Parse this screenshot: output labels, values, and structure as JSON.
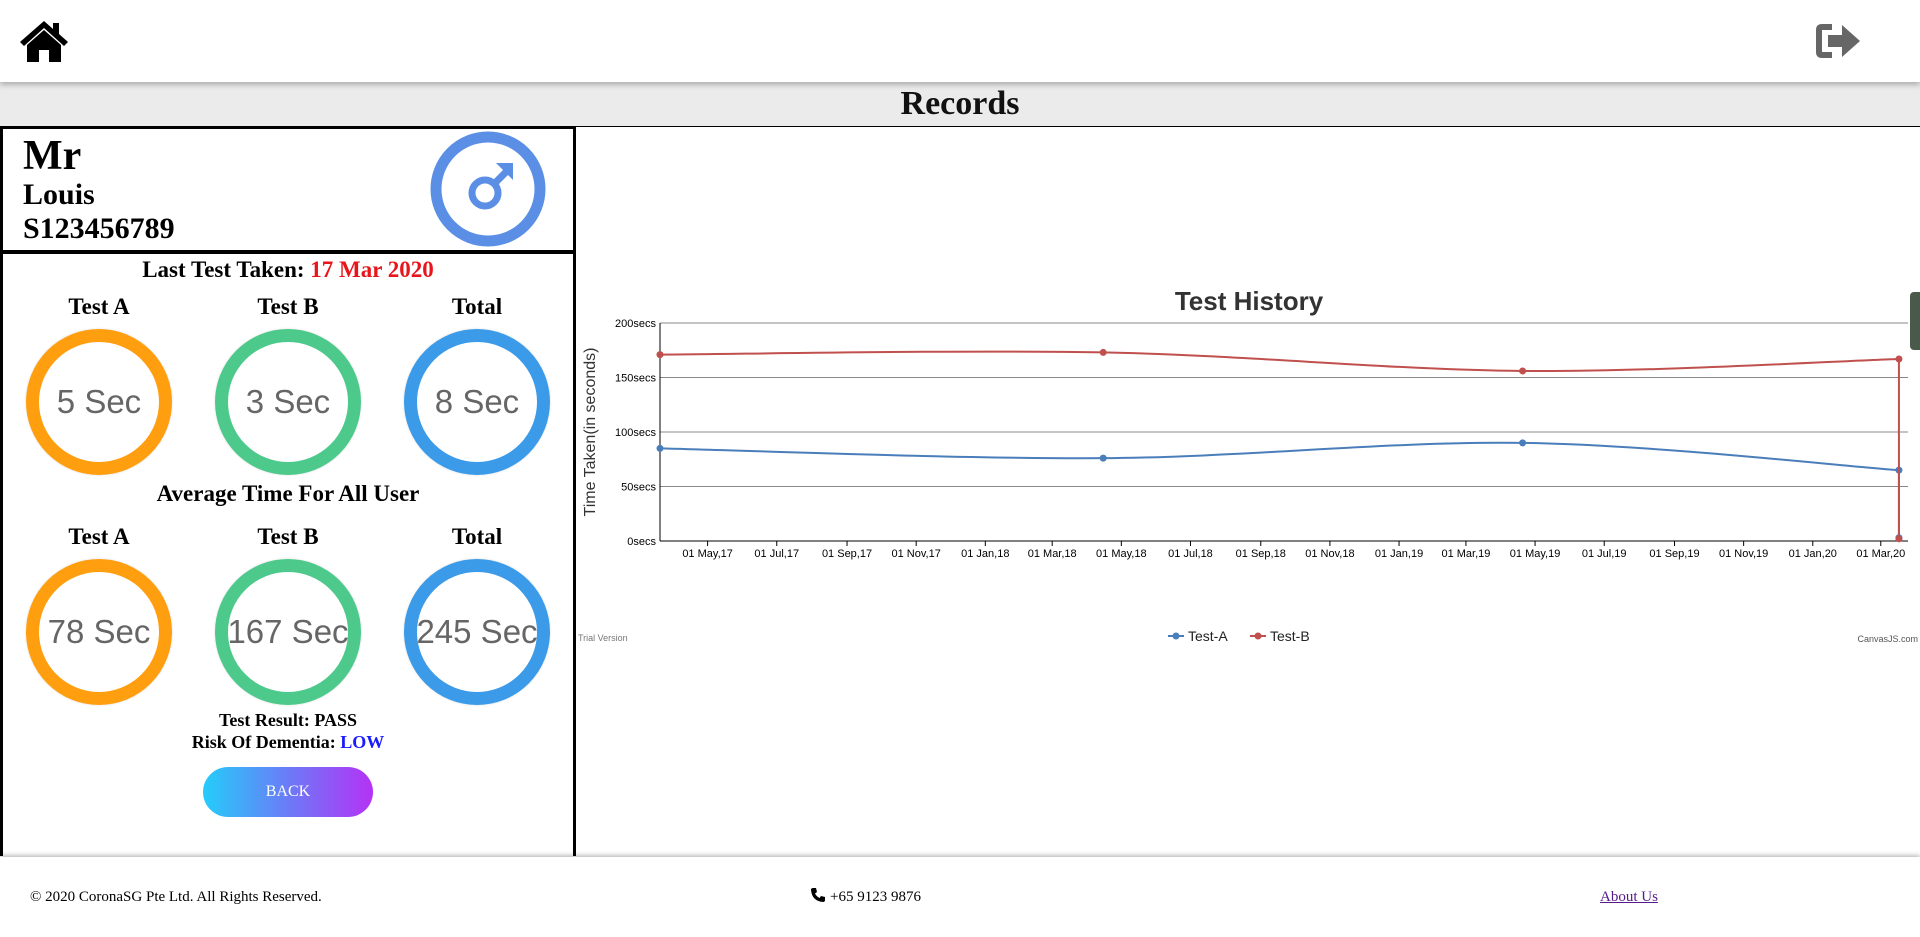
{
  "header": {
    "home_icon": "home-icon",
    "logout_icon": "sign-out-icon",
    "page_title": "Records"
  },
  "profile": {
    "title": "Mr",
    "name": "Louis",
    "id": "S123456789",
    "gender_icon": "male-symbol-icon",
    "gender_color": "#5b8fe6"
  },
  "last_test": {
    "label": "Last Test Taken:",
    "date": "17 Mar 2020"
  },
  "user_times": {
    "items": [
      {
        "label": "Test A",
        "value": "5 Sec",
        "color": "#ff9e0e"
      },
      {
        "label": "Test B",
        "value": "3 Sec",
        "color": "#4ec98c"
      },
      {
        "label": "Total",
        "value": "8 Sec",
        "color": "#3c9be8"
      }
    ]
  },
  "average": {
    "heading": "Average Time For All User",
    "items": [
      {
        "label": "Test A",
        "value": "78 Sec",
        "color": "#ff9e0e"
      },
      {
        "label": "Test B",
        "value": "167 Sec",
        "color": "#4ec98c"
      },
      {
        "label": "Total",
        "value": "245 Sec",
        "color": "#3c9be8"
      }
    ]
  },
  "result": {
    "result_label": "Test Result:",
    "result_value": "PASS",
    "risk_label": "Risk Of Dementia:",
    "risk_value": "LOW"
  },
  "back_button": "BACK",
  "chart_data": {
    "type": "line",
    "title": "Test History",
    "ylabel": "Time Taken(in seconds)",
    "xlabel": "",
    "ylim": [
      0,
      200
    ],
    "y_ticks": [
      "0secs",
      "50secs",
      "100secs",
      "150secs",
      "200secs"
    ],
    "x_ticks": [
      "01 May,17",
      "01 Jul,17",
      "01 Sep,17",
      "01 Nov,17",
      "01 Jan,18",
      "01 Mar,18",
      "01 May,18",
      "01 Jul,18",
      "01 Sep,18",
      "01 Nov,18",
      "01 Jan,19",
      "01 Mar,19",
      "01 May,19",
      "01 Jul,19",
      "01 Sep,19",
      "01 Nov,19",
      "01 Jan,20",
      "01 Mar,20"
    ],
    "x_range": [
      "2017-03-20",
      "2020-03-25"
    ],
    "grid": true,
    "legend_position": "bottom",
    "series": [
      {
        "name": "Test-A",
        "color": "#4a7ebb",
        "points": [
          [
            "2017-03-20",
            85
          ],
          [
            "2018-04-15",
            76
          ],
          [
            "2019-04-20",
            90
          ],
          [
            "2020-03-17",
            65
          ],
          [
            "2020-03-17",
            3
          ]
        ]
      },
      {
        "name": "Test-B",
        "color": "#c0504d",
        "points": [
          [
            "2017-03-20",
            171
          ],
          [
            "2018-04-15",
            173
          ],
          [
            "2019-04-20",
            156
          ],
          [
            "2020-03-17",
            167
          ],
          [
            "2020-03-17",
            2
          ]
        ]
      }
    ],
    "watermark_left": "Trial Version",
    "watermark_right": "CanvasJS.com"
  },
  "footer": {
    "copyright": "© 2020 CoronaSG Pte Ltd. All Rights Reserved.",
    "phone_icon": "phone-icon",
    "phone": "+65 9123 9876",
    "about": "About Us"
  }
}
